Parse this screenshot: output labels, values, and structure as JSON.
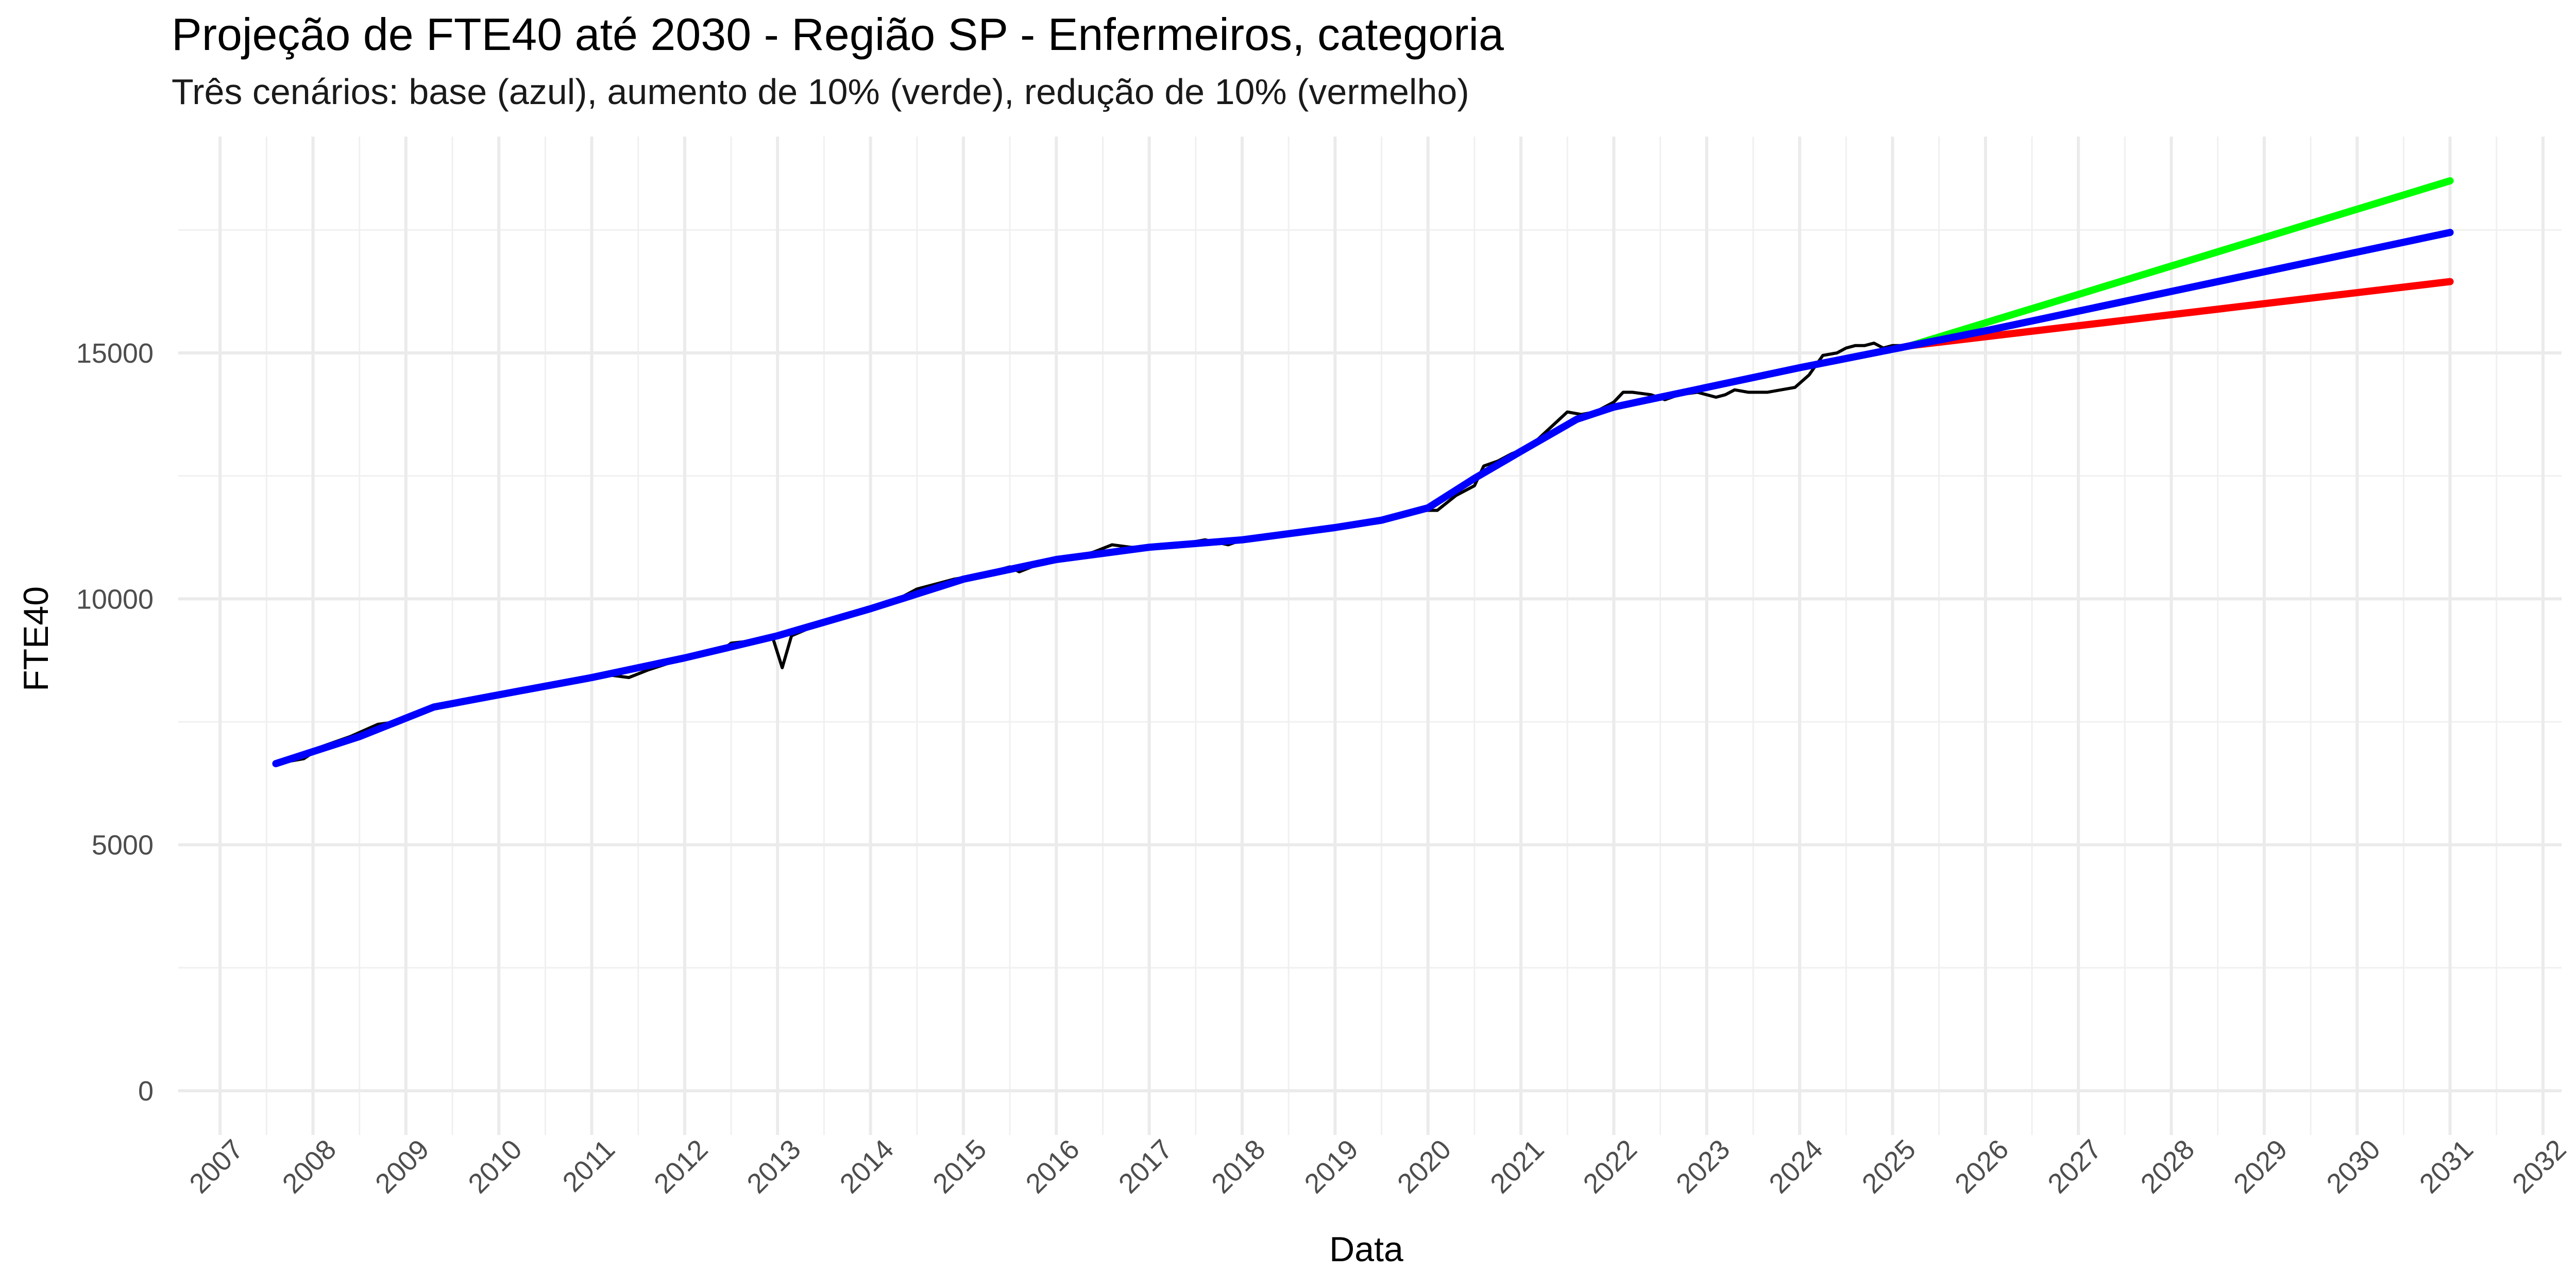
{
  "chart_data": {
    "type": "line",
    "title": "Projeção de FTE40 até 2030 - Região SP - Enfermeiros, categoria",
    "subtitle": "Três cenários: base (azul), aumento de 10% (verde), redução de 10% (vermelho)",
    "xlabel": "Data",
    "ylabel": "FTE40",
    "xlim": [
      2006.55,
      2032.2
    ],
    "ylim": [
      -900,
      19400
    ],
    "x_ticks": [
      2007,
      2008,
      2009,
      2010,
      2011,
      2012,
      2013,
      2014,
      2015,
      2016,
      2017,
      2018,
      2019,
      2020,
      2021,
      2022,
      2023,
      2024,
      2025,
      2026,
      2027,
      2028,
      2029,
      2030,
      2031,
      2032
    ],
    "x_tick_labels": [
      "2007",
      "2008",
      "2009",
      "2010",
      "2011",
      "2012",
      "2013",
      "2014",
      "2015",
      "2016",
      "2017",
      "2018",
      "2019",
      "2020",
      "2021",
      "2022",
      "2023",
      "2024",
      "2025",
      "2026",
      "2027",
      "2028",
      "2029",
      "2030",
      "2031",
      "2032"
    ],
    "y_ticks": [
      0,
      5000,
      10000,
      15000
    ],
    "y_tick_labels": [
      "0",
      "5000",
      "10000",
      "15000"
    ],
    "grid": true,
    "legend": "none",
    "series": [
      {
        "color": "#000000",
        "width": 6,
        "x": [
          2007.6,
          2007.9,
          2008.1,
          2008.4,
          2008.7,
          2008.9,
          2009.3,
          2009.8,
          2010.3,
          2010.8,
          2011.2,
          2011.4,
          2011.6,
          2012.0,
          2012.4,
          2012.5,
          2012.75,
          2012.95,
          2013.05,
          2013.15,
          2013.4,
          2013.8,
          2014.2,
          2014.5,
          2014.7,
          2014.9,
          2015.2,
          2015.5,
          2015.6,
          2015.8,
          2016.1,
          2016.4,
          2016.6,
          2016.8,
          2017.0,
          2017.3,
          2017.6,
          2017.85,
          2018.0,
          2018.3,
          2018.6,
          2019.0,
          2019.3,
          2019.6,
          2019.95,
          2020.1,
          2020.3,
          2020.5,
          2020.6,
          2020.75,
          2020.9,
          2021.1,
          2021.3,
          2021.5,
          2021.65,
          2021.8,
          2022.0,
          2022.1,
          2022.2,
          2022.4,
          2022.55,
          2022.7,
          2022.9,
          2023.1,
          2023.2,
          2023.3,
          2023.45,
          2023.55,
          2023.65,
          2023.8,
          2023.95,
          2024.1,
          2024.25,
          2024.4,
          2024.5,
          2024.6,
          2024.7,
          2024.8,
          2024.9,
          2025.0,
          2025.15
        ],
        "y": [
          6650,
          6750,
          7000,
          7200,
          7450,
          7500,
          7800,
          8000,
          8150,
          8300,
          8450,
          8400,
          8550,
          8800,
          8950,
          9100,
          9150,
          9200,
          8600,
          9250,
          9450,
          9700,
          9900,
          10200,
          10300,
          10400,
          10500,
          10650,
          10550,
          10700,
          10800,
          10950,
          11100,
          11050,
          11050,
          11100,
          11200,
          11100,
          11200,
          11250,
          11350,
          11450,
          11550,
          11650,
          11800,
          11800,
          12100,
          12300,
          12700,
          12800,
          12950,
          13100,
          13450,
          13800,
          13750,
          13800,
          14000,
          14200,
          14200,
          14150,
          14050,
          14150,
          14200,
          14100,
          14150,
          14250,
          14200,
          14200,
          14200,
          14250,
          14300,
          14550,
          14950,
          15000,
          15100,
          15150,
          15150,
          15200,
          15100,
          15150,
          15150
        ]
      },
      {
        "color": "#00ff00",
        "width": 14,
        "x": [
          2025.2,
          2031.0
        ],
        "y": [
          15150,
          18500
        ]
      },
      {
        "color": "#ff0000",
        "width": 14,
        "x": [
          2025.2,
          2031.0
        ],
        "y": [
          15150,
          16450
        ]
      },
      {
        "color": "#0000ff",
        "width": 14,
        "x": [
          2007.6,
          2008.5,
          2009.3,
          2010.0,
          2011.0,
          2012.0,
          2013.0,
          2014.0,
          2015.0,
          2016.0,
          2017.0,
          2018.0,
          2019.0,
          2019.5,
          2020.0,
          2020.5,
          2021.0,
          2021.6,
          2022.0,
          2023.0,
          2024.0,
          2025.2,
          2026.0,
          2027.0,
          2028.0,
          2029.0,
          2030.0,
          2031.0
        ],
        "y": [
          6650,
          7200,
          7800,
          8050,
          8400,
          8800,
          9250,
          9800,
          10400,
          10800,
          11050,
          11200,
          11450,
          11600,
          11850,
          12450,
          13000,
          13650,
          13900,
          14300,
          14700,
          15150,
          15450,
          15850,
          16250,
          16650,
          17050,
          17450
        ]
      }
    ]
  }
}
